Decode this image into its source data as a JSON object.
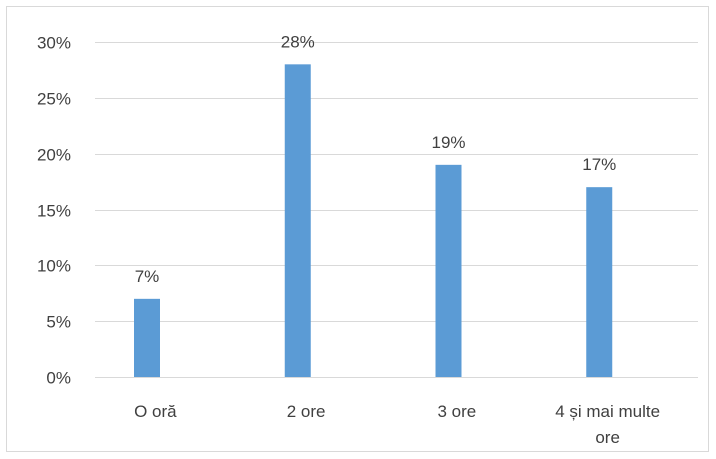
{
  "chart_data": {
    "type": "bar",
    "categories": [
      "O oră",
      "2 ore",
      "3 ore",
      "4 și mai multe ore"
    ],
    "category_label_lines": [
      [
        "O oră"
      ],
      [
        "2 ore"
      ],
      [
        "3 ore"
      ],
      [
        "4 și mai multe",
        "ore"
      ]
    ],
    "values": [
      7,
      28,
      19,
      17
    ],
    "data_labels": [
      "7%",
      "28%",
      "19%",
      "17%"
    ],
    "y_ticks": [
      "0%",
      "5%",
      "10%",
      "15%",
      "20%",
      "25%",
      "30%"
    ],
    "ylim": [
      0,
      30
    ],
    "title": "",
    "xlabel": "",
    "ylabel": "",
    "grid": true,
    "legend": "none",
    "bar_color": "#5b9bd5",
    "grid_color": "#d9d9d9"
  }
}
